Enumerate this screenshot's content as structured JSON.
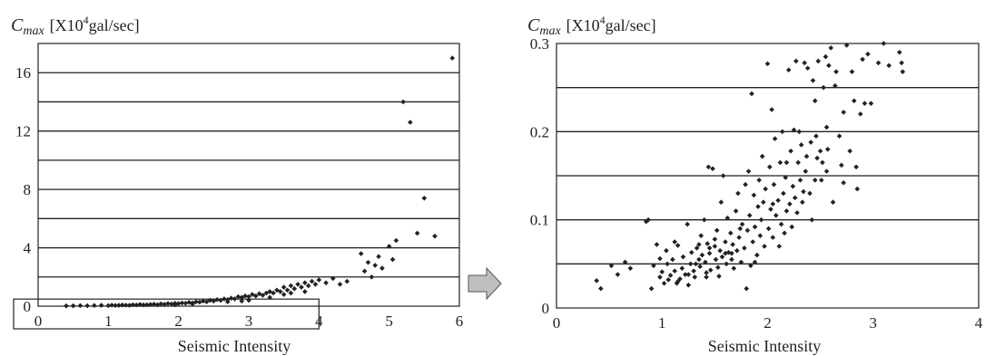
{
  "arrow_color": "#bfbfbf",
  "chart_data": [
    {
      "type": "scatter",
      "title": "",
      "ylabel_symbol": "C",
      "ylabel_subscript": "max",
      "ylabel_unit_prefix": "[X10",
      "ylabel_unit_exp": "4",
      "ylabel_unit_suffix": "gal/sec]",
      "xlabel": "Seismic Intensity",
      "xlim": [
        0,
        6
      ],
      "ylim": [
        0,
        18
      ],
      "xticks": [
        0,
        1,
        2,
        3,
        4,
        5,
        6
      ],
      "yticks": [
        0,
        4,
        8,
        12,
        16
      ],
      "ygrid": [
        2,
        4,
        6,
        8,
        10,
        12,
        14,
        16
      ],
      "zoom_region": {
        "x": [
          0,
          4
        ],
        "y": [
          0,
          0.3
        ]
      },
      "points": [
        [
          0.4,
          0.02
        ],
        [
          0.5,
          0.03
        ],
        [
          0.6,
          0.04
        ],
        [
          0.7,
          0.03
        ],
        [
          0.8,
          0.05
        ],
        [
          0.9,
          0.06
        ],
        [
          1.0,
          0.04
        ],
        [
          1.05,
          0.07
        ],
        [
          1.1,
          0.05
        ],
        [
          1.15,
          0.06
        ],
        [
          1.2,
          0.08
        ],
        [
          1.25,
          0.07
        ],
        [
          1.3,
          0.06
        ],
        [
          1.35,
          0.1
        ],
        [
          1.4,
          0.08
        ],
        [
          1.45,
          0.12
        ],
        [
          1.5,
          0.09
        ],
        [
          1.55,
          0.1
        ],
        [
          1.6,
          0.12
        ],
        [
          1.65,
          0.14
        ],
        [
          1.7,
          0.1
        ],
        [
          1.75,
          0.16
        ],
        [
          1.8,
          0.13
        ],
        [
          1.85,
          0.18
        ],
        [
          1.9,
          0.15
        ],
        [
          1.95,
          0.2
        ],
        [
          2.0,
          0.18
        ],
        [
          2.05,
          0.22
        ],
        [
          2.1,
          0.2
        ],
        [
          2.15,
          0.26
        ],
        [
          2.2,
          0.22
        ],
        [
          2.25,
          0.3
        ],
        [
          2.3,
          0.28
        ],
        [
          2.35,
          0.35
        ],
        [
          2.4,
          0.3
        ],
        [
          2.45,
          0.4
        ],
        [
          2.5,
          0.35
        ],
        [
          2.55,
          0.45
        ],
        [
          2.6,
          0.4
        ],
        [
          2.65,
          0.5
        ],
        [
          2.7,
          0.45
        ],
        [
          2.75,
          0.55
        ],
        [
          2.8,
          0.5
        ],
        [
          2.85,
          0.65
        ],
        [
          2.9,
          0.6
        ],
        [
          2.95,
          0.7
        ],
        [
          3.0,
          0.65
        ],
        [
          3.05,
          0.8
        ],
        [
          3.1,
          0.7
        ],
        [
          3.15,
          0.85
        ],
        [
          3.2,
          0.75
        ],
        [
          3.25,
          0.9
        ],
        [
          3.3,
          1.0
        ],
        [
          3.35,
          0.9
        ],
        [
          3.4,
          1.1
        ],
        [
          3.45,
          1.0
        ],
        [
          3.5,
          1.3
        ],
        [
          3.55,
          1.1
        ],
        [
          3.6,
          1.4
        ],
        [
          3.65,
          1.2
        ],
        [
          3.7,
          1.5
        ],
        [
          3.75,
          1.3
        ],
        [
          3.8,
          1.6
        ],
        [
          3.85,
          1.4
        ],
        [
          3.9,
          1.7
        ],
        [
          3.95,
          1.5
        ],
        [
          4.0,
          1.8
        ],
        [
          4.1,
          1.6
        ],
        [
          4.2,
          1.9
        ],
        [
          4.3,
          1.5
        ],
        [
          4.4,
          1.7
        ],
        [
          4.6,
          3.6
        ],
        [
          4.65,
          2.4
        ],
        [
          4.7,
          3.0
        ],
        [
          4.75,
          2.0
        ],
        [
          4.8,
          2.8
        ],
        [
          4.85,
          3.4
        ],
        [
          4.9,
          2.6
        ],
        [
          5.0,
          4.1
        ],
        [
          5.05,
          3.2
        ],
        [
          5.1,
          4.5
        ],
        [
          5.2,
          14.0
        ],
        [
          5.3,
          12.6
        ],
        [
          5.4,
          5.0
        ],
        [
          5.5,
          7.4
        ],
        [
          5.65,
          4.8
        ],
        [
          5.9,
          17.0
        ],
        [
          3.0,
          0.4
        ],
        [
          2.7,
          0.3
        ],
        [
          2.2,
          0.15
        ],
        [
          3.6,
          0.9
        ],
        [
          3.3,
          0.6
        ],
        [
          2.9,
          0.35
        ],
        [
          1.95,
          0.1
        ],
        [
          3.5,
          0.8
        ],
        [
          3.8,
          1.0
        ]
      ]
    },
    {
      "type": "scatter",
      "title": "",
      "ylabel_symbol": "C",
      "ylabel_subscript": "max",
      "ylabel_unit_prefix": "[X10",
      "ylabel_unit_exp": "4",
      "ylabel_unit_suffix": "gal/sec]",
      "xlabel": "Seismic Intensity",
      "xlim": [
        0,
        4
      ],
      "ylim": [
        0,
        0.3
      ],
      "xticks": [
        0,
        1,
        2,
        3,
        4
      ],
      "yticks": [
        0,
        0.1,
        0.2,
        0.3
      ],
      "ygrid": [
        0.05,
        0.1,
        0.15,
        0.2,
        0.25
      ],
      "points": [
        [
          0.38,
          0.031
        ],
        [
          0.42,
          0.022
        ],
        [
          0.52,
          0.048
        ],
        [
          0.58,
          0.038
        ],
        [
          0.65,
          0.052
        ],
        [
          0.7,
          0.045
        ],
        [
          0.85,
          0.098
        ],
        [
          0.87,
          0.1
        ],
        [
          0.9,
          0.022
        ],
        [
          0.92,
          0.048
        ],
        [
          0.95,
          0.072
        ],
        [
          0.98,
          0.035
        ],
        [
          1.0,
          0.041
        ],
        [
          1.02,
          0.028
        ],
        [
          1.04,
          0.065
        ],
        [
          1.06,
          0.032
        ],
        [
          1.08,
          0.037
        ],
        [
          1.1,
          0.055
        ],
        [
          1.12,
          0.042
        ],
        [
          1.14,
          0.028
        ],
        [
          1.15,
          0.071
        ],
        [
          1.17,
          0.033
        ],
        [
          1.19,
          0.045
        ],
        [
          1.2,
          0.058
        ],
        [
          1.22,
          0.038
        ],
        [
          1.24,
          0.095
        ],
        [
          1.25,
          0.026
        ],
        [
          1.27,
          0.05
        ],
        [
          1.28,
          0.063
        ],
        [
          1.3,
          0.042
        ],
        [
          1.31,
          0.035
        ],
        [
          1.33,
          0.068
        ],
        [
          1.35,
          0.055
        ],
        [
          1.36,
          0.047
        ],
        [
          1.37,
          0.082
        ],
        [
          1.38,
          0.06
        ],
        [
          1.4,
          0.1
        ],
        [
          1.41,
          0.052
        ],
        [
          1.42,
          0.035
        ],
        [
          1.43,
          0.073
        ],
        [
          1.44,
          0.16
        ],
        [
          1.45,
          0.062
        ],
        [
          1.46,
          0.043
        ],
        [
          1.48,
          0.158
        ],
        [
          1.5,
          0.07
        ],
        [
          1.51,
          0.055
        ],
        [
          1.52,
          0.088
        ],
        [
          1.53,
          0.046
        ],
        [
          1.55,
          0.065
        ],
        [
          1.56,
          0.12
        ],
        [
          1.57,
          0.058
        ],
        [
          1.58,
          0.15
        ],
        [
          1.6,
          0.075
        ],
        [
          1.61,
          0.05
        ],
        [
          1.62,
          0.102
        ],
        [
          1.63,
          0.063
        ],
        [
          1.65,
          0.085
        ],
        [
          1.66,
          0.055
        ],
        [
          1.67,
          0.072
        ],
        [
          1.68,
          0.045
        ],
        [
          1.7,
          0.11
        ],
        [
          1.71,
          0.065
        ],
        [
          1.72,
          0.13
        ],
        [
          1.73,
          0.08
        ],
        [
          1.75,
          0.052
        ],
        [
          1.76,
          0.095
        ],
        [
          1.78,
          0.068
        ],
        [
          1.79,
          0.14
        ],
        [
          1.8,
          0.022
        ],
        [
          1.81,
          0.088
        ],
        [
          1.82,
          0.155
        ],
        [
          1.83,
          0.105
        ],
        [
          1.84,
          0.048
        ],
        [
          1.85,
          0.243
        ],
        [
          1.86,
          0.075
        ],
        [
          1.87,
          0.128
        ],
        [
          1.88,
          0.092
        ],
        [
          1.9,
          0.06
        ],
        [
          1.91,
          0.115
        ],
        [
          1.92,
          0.145
        ],
        [
          1.93,
          0.082
        ],
        [
          1.94,
          0.1
        ],
        [
          1.95,
          0.172
        ],
        [
          1.96,
          0.12
        ],
        [
          1.97,
          0.07
        ],
        [
          1.98,
          0.135
        ],
        [
          2.0,
          0.277
        ],
        [
          2.01,
          0.09
        ],
        [
          2.02,
          0.16
        ],
        [
          2.03,
          0.112
        ],
        [
          2.04,
          0.225
        ],
        [
          2.05,
          0.08
        ],
        [
          2.06,
          0.14
        ],
        [
          2.07,
          0.192
        ],
        [
          2.08,
          0.105
        ],
        [
          2.1,
          0.122
        ],
        [
          2.11,
          0.07
        ],
        [
          2.12,
          0.165
        ],
        [
          2.13,
          0.095
        ],
        [
          2.14,
          0.2
        ],
        [
          2.15,
          0.13
        ],
        [
          2.16,
          0.085
        ],
        [
          2.17,
          0.148
        ],
        [
          2.18,
          0.11
        ],
        [
          2.2,
          0.27
        ],
        [
          2.21,
          0.118
        ],
        [
          2.22,
          0.178
        ],
        [
          2.23,
          0.092
        ],
        [
          2.24,
          0.138
        ],
        [
          2.25,
          0.202
        ],
        [
          2.26,
          0.125
        ],
        [
          2.27,
          0.28
        ],
        [
          2.28,
          0.108
        ],
        [
          2.29,
          0.165
        ],
        [
          2.3,
          0.2
        ],
        [
          2.31,
          0.145
        ],
        [
          2.32,
          0.185
        ],
        [
          2.33,
          0.12
        ],
        [
          2.35,
          0.278
        ],
        [
          2.36,
          0.155
        ],
        [
          2.37,
          0.172
        ],
        [
          2.38,
          0.272
        ],
        [
          2.4,
          0.13
        ],
        [
          2.41,
          0.188
        ],
        [
          2.42,
          0.1
        ],
        [
          2.43,
          0.258
        ],
        [
          2.45,
          0.145
        ],
        [
          2.46,
          0.195
        ],
        [
          2.47,
          0.17
        ],
        [
          2.48,
          0.28
        ],
        [
          2.5,
          0.178
        ],
        [
          2.51,
          0.145
        ],
        [
          2.52,
          0.165
        ],
        [
          2.53,
          0.25
        ],
        [
          2.55,
          0.285
        ],
        [
          2.56,
          0.155
        ],
        [
          2.57,
          0.18
        ],
        [
          2.58,
          0.275
        ],
        [
          2.6,
          0.295
        ],
        [
          2.62,
          0.12
        ],
        [
          2.65,
          0.268
        ],
        [
          2.68,
          0.195
        ],
        [
          2.7,
          0.162
        ],
        [
          2.72,
          0.142
        ],
        [
          2.75,
          0.298
        ],
        [
          2.78,
          0.178
        ],
        [
          2.8,
          0.268
        ],
        [
          2.82,
          0.235
        ],
        [
          2.84,
          0.16
        ],
        [
          2.85,
          0.135
        ],
        [
          2.88,
          0.22
        ],
        [
          2.9,
          0.282
        ],
        [
          2.92,
          0.232
        ],
        [
          2.95,
          0.288
        ],
        [
          2.98,
          0.232
        ],
        [
          3.05,
          0.278
        ],
        [
          3.1,
          0.3
        ],
        [
          3.15,
          0.275
        ],
        [
          3.25,
          0.29
        ],
        [
          3.27,
          0.278
        ],
        [
          3.28,
          0.268
        ],
        [
          1.5,
          0.078
        ],
        [
          1.6,
          0.062
        ],
        [
          1.45,
          0.068
        ],
        [
          1.35,
          0.072
        ],
        [
          1.25,
          0.038
        ],
        [
          1.15,
          0.03
        ],
        [
          1.05,
          0.05
        ],
        [
          0.98,
          0.056
        ],
        [
          1.12,
          0.075
        ],
        [
          1.32,
          0.05
        ],
        [
          1.42,
          0.04
        ],
        [
          1.54,
          0.036
        ],
        [
          1.66,
          0.062
        ],
        [
          1.74,
          0.09
        ],
        [
          1.88,
          0.052
        ],
        [
          2.05,
          0.118
        ],
        [
          2.18,
          0.165
        ],
        [
          2.34,
          0.132
        ],
        [
          2.45,
          0.235
        ],
        [
          2.56,
          0.205
        ],
        [
          2.64,
          0.252
        ],
        [
          2.72,
          0.222
        ]
      ]
    }
  ]
}
